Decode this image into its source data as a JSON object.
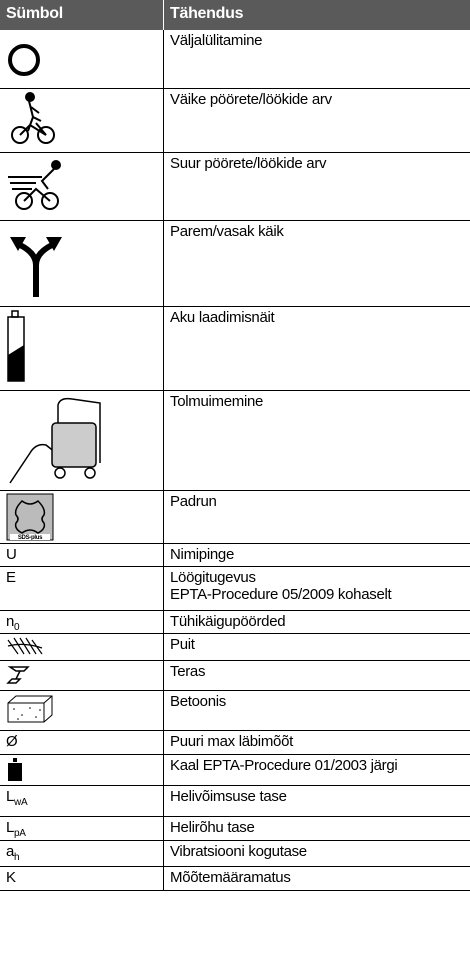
{
  "table": {
    "header": [
      "Sümbol",
      "Tähendus"
    ],
    "rows": [
      {
        "meaning": "Väljalülitamine"
      },
      {
        "meaning": "Väike pöörete/löökide arv"
      },
      {
        "meaning": "Suur pöörete/löökide arv"
      },
      {
        "meaning": "Parem/vasak käik"
      },
      {
        "meaning": "Aku laadimisnäit"
      },
      {
        "meaning": "Tolmuimemine"
      },
      {
        "symbol_label": "SDS-plus",
        "meaning": "Padrun"
      },
      {
        "symbol": "U",
        "meaning": "Nimipinge"
      },
      {
        "symbol": "E",
        "meaning": [
          "Löögitugevus",
          "EPTA-Procedure 05/2009 kohaselt"
        ]
      },
      {
        "symbol": "n",
        "symbol_sub": "0",
        "meaning": "Tühikäigupöörded"
      },
      {
        "meaning": "Puit"
      },
      {
        "meaning": "Teras"
      },
      {
        "meaning": "Betoonis"
      },
      {
        "symbol": "Ø",
        "meaning": "Puuri max läbimõõt"
      },
      {
        "meaning": "Kaal EPTA-Procedure 01/2003 järgi"
      },
      {
        "symbol": "L",
        "symbol_sub": "wA",
        "meaning": "Helivõimsuse tase"
      },
      {
        "symbol": "L",
        "symbol_sub": "pA",
        "meaning": "Helirõhu tase"
      },
      {
        "symbol": "a",
        "symbol_sub": "h",
        "meaning": "Vibratsiooni kogutase"
      },
      {
        "symbol": "K",
        "meaning": "Mõõtemääramatus"
      }
    ]
  }
}
